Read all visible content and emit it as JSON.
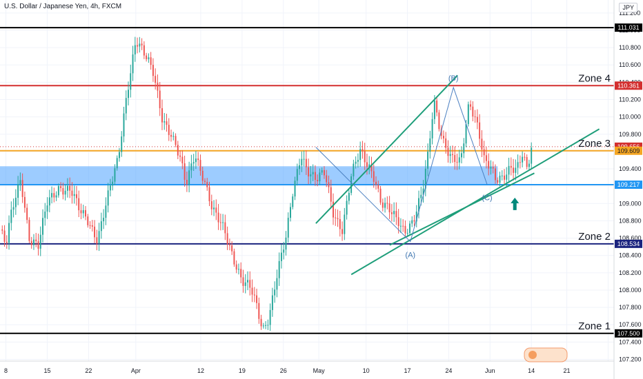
{
  "header": {
    "title": "U.S. Dollar / Japanese Yen, 4h, FXCM",
    "currency": "JPY"
  },
  "chart_data": {
    "type": "candlestick",
    "ylim": [
      107.18,
      111.35
    ],
    "y_ticks": [
      107.2,
      107.4,
      107.6,
      107.8,
      108.0,
      108.2,
      108.4,
      108.6,
      108.8,
      109.0,
      109.2,
      109.4,
      109.6,
      109.8,
      110.0,
      110.2,
      110.4,
      110.6,
      110.8,
      111.0,
      111.2
    ],
    "y_tick_labels": [
      "107.200",
      "107.400",
      "107.600",
      "107.800",
      "108.000",
      "108.200",
      "108.400",
      "108.600",
      "108.800",
      "109.000",
      "109.200",
      "109.400",
      "109.600",
      "109.800",
      "110.000",
      "110.200",
      "110.400",
      "110.600",
      "110.800",
      "111.000",
      "111.200"
    ],
    "x_range": [
      7.0,
      111.0
    ],
    "x_ticks": [
      8,
      15,
      22,
      30,
      41,
      48,
      55,
      61,
      69,
      76,
      83,
      90,
      97,
      103,
      110
    ],
    "x_tick_labels": [
      "8",
      "15",
      "22",
      "Apr",
      "12",
      "19",
      "26",
      "May",
      "10",
      "17",
      "24",
      "Jun",
      "14",
      "21",
      ""
    ],
    "price_path": [
      [
        7.0,
        108.7
      ],
      [
        8.0,
        108.5
      ],
      [
        9.0,
        108.9
      ],
      [
        10.5,
        109.3
      ],
      [
        12,
        108.6
      ],
      [
        13.5,
        108.5
      ],
      [
        15,
        109.0
      ],
      [
        17,
        109.2
      ],
      [
        19,
        109.15
      ],
      [
        20.5,
        108.9
      ],
      [
        22,
        108.8
      ],
      [
        23.5,
        108.6
      ],
      [
        25,
        109.0
      ],
      [
        27,
        109.5
      ],
      [
        28.5,
        110.3
      ],
      [
        30,
        110.9
      ],
      [
        31.5,
        110.7
      ],
      [
        33,
        110.5
      ],
      [
        34.5,
        110.0
      ],
      [
        36,
        109.8
      ],
      [
        37.5,
        109.5
      ],
      [
        38.5,
        109.2
      ],
      [
        40,
        109.6
      ],
      [
        41.5,
        109.3
      ],
      [
        43,
        108.9
      ],
      [
        45,
        108.7
      ],
      [
        47,
        108.3
      ],
      [
        48,
        108.1
      ],
      [
        49.5,
        108.0
      ],
      [
        50.5,
        107.8
      ],
      [
        51.5,
        107.55
      ],
      [
        52.5,
        107.7
      ],
      [
        54,
        108.2
      ],
      [
        55.5,
        108.6
      ],
      [
        56.5,
        109.1
      ],
      [
        58,
        109.6
      ],
      [
        59,
        109.4
      ],
      [
        60.5,
        109.25
      ],
      [
        62,
        109.35
      ],
      [
        63.5,
        108.9
      ],
      [
        65,
        108.7
      ],
      [
        66.5,
        109.3
      ],
      [
        68,
        109.6
      ],
      [
        69.5,
        109.45
      ],
      [
        70.5,
        109.3
      ],
      [
        71.5,
        109.0
      ],
      [
        73,
        108.9
      ],
      [
        74.5,
        108.8
      ],
      [
        75.5,
        108.7
      ],
      [
        77,
        108.8
      ],
      [
        78.5,
        109.1
      ],
      [
        79.5,
        109.55
      ],
      [
        80.5,
        110.2
      ],
      [
        82,
        109.75
      ],
      [
        83.5,
        109.5
      ],
      [
        85,
        109.45
      ],
      [
        86.5,
        110.2
      ],
      [
        88,
        109.9
      ],
      [
        89,
        109.5
      ],
      [
        90,
        109.4
      ],
      [
        91,
        109.25
      ],
      [
        92,
        109.3
      ],
      [
        93.5,
        109.45
      ],
      [
        94.5,
        109.4
      ],
      [
        95.5,
        109.55
      ],
      [
        96.3,
        109.35
      ],
      [
        97,
        109.63
      ]
    ],
    "horizontal_levels": [
      {
        "value": 111.031,
        "label": "111.031",
        "color": "#000000"
      },
      {
        "value": 110.361,
        "label": "110.361",
        "color": "#d32f2f"
      },
      {
        "value": 109.656,
        "label": "109.656",
        "color": "#d32f2f"
      },
      {
        "value": 109.609,
        "label": "109.609",
        "color": "#f5a623"
      },
      {
        "value": 109.217,
        "label": "109.217",
        "color": "#2196f3"
      },
      {
        "value": 108.534,
        "label": "108.534",
        "color": "#1a237e"
      },
      {
        "value": 107.5,
        "label": "107.500",
        "color": "#000000"
      }
    ],
    "zones": [
      {
        "label": "Zone 4",
        "value": 110.361
      },
      {
        "label": "Zone 3",
        "value": 109.609
      },
      {
        "label": "Zone 2",
        "value": 108.534
      },
      {
        "label": "Zone 1",
        "value": 107.5
      }
    ],
    "support_band": {
      "from": 109.217,
      "to": 109.43,
      "x_from": 7.0,
      "x_to": 91.3,
      "color": "#4da3ff"
    },
    "channel_lines": [
      {
        "from": [
          60.5,
          108.77
        ],
        "to": [
          84.5,
          110.48
        ],
        "color": "#1e9e7a"
      },
      {
        "from": [
          66.5,
          108.18
        ],
        "to": [
          108.5,
          109.86
        ],
        "color": "#1e9e7a"
      },
      {
        "from": [
          73.0,
          108.52
        ],
        "to": [
          97.5,
          109.35
        ],
        "color": "#1e9e7a"
      }
    ],
    "wave_lines": [
      {
        "points": [
          [
            60.5,
            109.65
          ],
          [
            76.5,
            108.56
          ],
          [
            83.8,
            110.34
          ],
          [
            89.5,
            109.22
          ]
        ],
        "color": "#4a7fc1"
      }
    ],
    "wave_labels": [
      {
        "text": "(A)",
        "x": 76.5,
        "y": 108.41
      },
      {
        "text": "(B)",
        "x": 83.8,
        "y": 110.45
      },
      {
        "text": "(C)",
        "x": 89.5,
        "y": 109.07
      }
    ],
    "arrow": {
      "x": 94.2,
      "y": 108.98,
      "color": "#00897b"
    },
    "colors": {
      "up": "#26a69a",
      "down": "#ef5350"
    }
  }
}
